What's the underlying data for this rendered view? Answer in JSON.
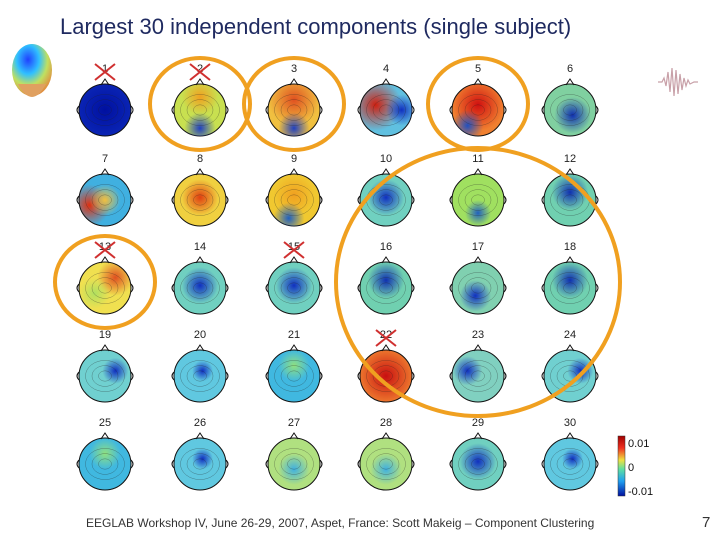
{
  "slide": {
    "title": "Largest 30 independent components (single subject)",
    "footer": "EEGLAB Workshop IV, June 26-29, 2007, Aspet, France: Scott Makeig – Component Clustering",
    "page_number": "7"
  },
  "components": [
    {
      "n": "1",
      "pattern": "blue-full",
      "crossed": true
    },
    {
      "n": "2",
      "pattern": "yellow-front",
      "crossed": true
    },
    {
      "n": "3",
      "pattern": "orange-front",
      "crossed": false
    },
    {
      "n": "4",
      "pattern": "red-left",
      "crossed": false
    },
    {
      "n": "5",
      "pattern": "red-center",
      "crossed": false
    },
    {
      "n": "6",
      "pattern": "blue-back",
      "crossed": false
    },
    {
      "n": "7",
      "pattern": "red-lateral",
      "crossed": false
    },
    {
      "n": "8",
      "pattern": "orange-center",
      "crossed": false
    },
    {
      "n": "9",
      "pattern": "yellow-back",
      "crossed": false
    },
    {
      "n": "10",
      "pattern": "blue-center",
      "crossed": false
    },
    {
      "n": "11",
      "pattern": "green-back",
      "crossed": false
    },
    {
      "n": "12",
      "pattern": "blue-top",
      "crossed": false
    },
    {
      "n": "13",
      "pattern": "yellow-split",
      "crossed": true
    },
    {
      "n": "14",
      "pattern": "blue-center",
      "crossed": false
    },
    {
      "n": "15",
      "pattern": "blue-center",
      "crossed": true
    },
    {
      "n": "16",
      "pattern": "blue-top",
      "crossed": false
    },
    {
      "n": "17",
      "pattern": "blue-lower",
      "crossed": false
    },
    {
      "n": "18",
      "pattern": "blue-top",
      "crossed": false
    },
    {
      "n": "19",
      "pattern": "blue-right",
      "crossed": false
    },
    {
      "n": "20",
      "pattern": "blue-small",
      "crossed": false
    },
    {
      "n": "21",
      "pattern": "cyan-flat",
      "crossed": false
    },
    {
      "n": "22",
      "pattern": "red-full",
      "crossed": true
    },
    {
      "n": "23",
      "pattern": "blue-left",
      "crossed": false
    },
    {
      "n": "24",
      "pattern": "blue-right",
      "crossed": false
    },
    {
      "n": "25",
      "pattern": "cyan-flat",
      "crossed": false
    },
    {
      "n": "26",
      "pattern": "blue-small",
      "crossed": false
    },
    {
      "n": "27",
      "pattern": "green-flat",
      "crossed": false
    },
    {
      "n": "28",
      "pattern": "green-flat",
      "crossed": false
    },
    {
      "n": "29",
      "pattern": "blue-center",
      "crossed": false
    },
    {
      "n": "30",
      "pattern": "blue-small",
      "crossed": false
    }
  ],
  "highlight_circles": [
    {
      "covers": [
        "2"
      ]
    },
    {
      "covers": [
        "3"
      ]
    },
    {
      "covers": [
        "5"
      ]
    },
    {
      "covers": [
        "13"
      ]
    },
    {
      "covers": [
        "10",
        "11",
        "12",
        "16",
        "17",
        "18",
        "22",
        "23",
        "24"
      ]
    }
  ],
  "colorbar": {
    "max_label": "0.01",
    "mid_label": "0",
    "min_label": "-0.01"
  },
  "colors": {
    "title": "#1f2a60",
    "highlight": "#f0a020",
    "cross": "#d03030"
  }
}
